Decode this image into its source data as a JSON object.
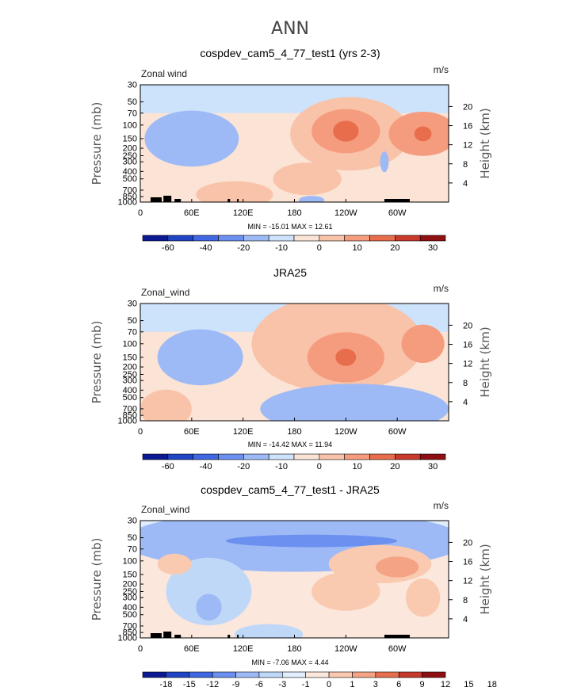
{
  "figure_title": "ANN",
  "colors": {
    "seq_main": [
      "#0b1a93",
      "#1f45c4",
      "#3f68e2",
      "#6c90ef",
      "#9dbaf6",
      "#cde2fb",
      "#fbe3d5",
      "#f9c3a9",
      "#f59c7e",
      "#e86d4c",
      "#c93a2b",
      "#8e1012"
    ],
    "seq_diff": [
      "#0b1a93",
      "#1f45c4",
      "#3f68e2",
      "#6c90ef",
      "#9dbaf6",
      "#c0d8f8",
      "#e1eefd",
      "#fbe7dc",
      "#f9c9b0",
      "#f4a384",
      "#e5704f",
      "#c63a2b",
      "#8e1012"
    ]
  },
  "chart_data": [
    {
      "type": "heatmap",
      "panel_title": "cospdev_cam5_4_77_test1 (yrs 2-3)",
      "left_label": "Zonal wind",
      "units": "m/s",
      "ylabel": "Pressure (mb)",
      "ylabel_right": "Height (km)",
      "x_ticks": [
        "0",
        "60E",
        "120E",
        "180",
        "120W",
        "60W"
      ],
      "y_ticks": [
        "30",
        "50",
        "70",
        "100",
        "150",
        "200",
        "250",
        "300",
        "400",
        "500",
        "700",
        "850",
        "1000"
      ],
      "height_ticks": [
        "4",
        "8",
        "12",
        "16",
        "20"
      ],
      "stats": "MIN = -15.01   MAX =  12.61",
      "colorbar_labels": [
        "-60",
        "-40",
        "-20",
        "-10",
        "0",
        "10",
        "20",
        "30"
      ],
      "blobs": [
        {
          "lon": 60,
          "p": 150,
          "rx": 55,
          "rp": 0.45,
          "v": -1
        },
        {
          "lon": 110,
          "p": 800,
          "rx": 45,
          "rp": 0.2,
          "v": 1
        },
        {
          "lon": 195,
          "p": 500,
          "rx": 40,
          "rp": 0.25,
          "v": 1
        },
        {
          "lon": 245,
          "p": 130,
          "rx": 70,
          "rp": 0.6,
          "v": 1
        },
        {
          "lon": 240,
          "p": 120,
          "rx": 40,
          "rp": 0.35,
          "v": 2
        },
        {
          "lon": 240,
          "p": 120,
          "rx": 15,
          "rp": 0.15,
          "v": 3
        },
        {
          "lon": 330,
          "p": 130,
          "rx": 40,
          "rp": 0.35,
          "v": 2
        },
        {
          "lon": 330,
          "p": 130,
          "rx": 10,
          "rp": 0.1,
          "v": 3
        },
        {
          "lon": 285,
          "p": 300,
          "rx": 5,
          "rp": 0.15,
          "v": -1
        },
        {
          "lon": 200,
          "p": 950,
          "rx": 15,
          "rp": 0.05,
          "v": -1
        }
      ]
    },
    {
      "type": "heatmap",
      "panel_title": "JRA25",
      "left_label": "Zonal_wind",
      "units": "m/s",
      "ylabel": "Pressure (mb)",
      "ylabel_right": "Height (km)",
      "x_ticks": [
        "0",
        "60E",
        "120E",
        "180",
        "120W",
        "60W"
      ],
      "y_ticks": [
        "30",
        "50",
        "70",
        "100",
        "150",
        "200",
        "250",
        "300",
        "400",
        "500",
        "700",
        "850",
        "1000"
      ],
      "height_ticks": [
        "4",
        "8",
        "12",
        "16",
        "20"
      ],
      "stats": "MIN = -14.42   MAX =  11.94",
      "colorbar_labels": [
        "-60",
        "-40",
        "-20",
        "-10",
        "0",
        "10",
        "20",
        "30"
      ],
      "blobs": [
        {
          "lon": 70,
          "p": 150,
          "rx": 50,
          "rp": 0.45,
          "v": -1
        },
        {
          "lon": 30,
          "p": 700,
          "rx": 30,
          "rp": 0.3,
          "v": 1
        },
        {
          "lon": 230,
          "p": 100,
          "rx": 100,
          "rp": 0.8,
          "v": 1
        },
        {
          "lon": 240,
          "p": 150,
          "rx": 45,
          "rp": 0.4,
          "v": 2
        },
        {
          "lon": 240,
          "p": 150,
          "rx": 12,
          "rp": 0.12,
          "v": 3
        },
        {
          "lon": 330,
          "p": 100,
          "rx": 25,
          "rp": 0.3,
          "v": 2
        },
        {
          "lon": 250,
          "p": 700,
          "rx": 110,
          "rp": 0.4,
          "v": -1
        }
      ]
    },
    {
      "type": "heatmap",
      "panel_title": "cospdev_cam5_4_77_test1 - JRA25",
      "left_label": "Zonal_wind",
      "units": "m/s",
      "ylabel": "Pressure (mb)",
      "ylabel_right": "Height (km)",
      "x_ticks": [
        "0",
        "60E",
        "120E",
        "180",
        "120W",
        "60W"
      ],
      "y_ticks": [
        "30",
        "50",
        "70",
        "100",
        "150",
        "200",
        "250",
        "300",
        "400",
        "500",
        "700",
        "850",
        "1000"
      ],
      "height_ticks": [
        "4",
        "8",
        "12",
        "16",
        "20"
      ],
      "stats": "MIN = -7.06   MAX =  4.44",
      "colorbar_labels": [
        "-18",
        "-15",
        "-12",
        "-9",
        "-6",
        "-3",
        "-1",
        "0",
        "1",
        "3",
        "6",
        "9",
        "12",
        "15",
        "18"
      ],
      "blobs": [
        {
          "lon": 180,
          "p": 55,
          "rx": 200,
          "rp": 0.5,
          "v": -2
        },
        {
          "lon": 200,
          "p": 55,
          "rx": 100,
          "rp": 0.08,
          "v": -3
        },
        {
          "lon": 80,
          "p": 250,
          "rx": 50,
          "rp": 0.55,
          "v": -1
        },
        {
          "lon": 80,
          "p": 400,
          "rx": 15,
          "rp": 0.2,
          "v": -2
        },
        {
          "lon": 280,
          "p": 110,
          "rx": 60,
          "rp": 0.3,
          "v": 1
        },
        {
          "lon": 300,
          "p": 120,
          "rx": 25,
          "rp": 0.15,
          "v": 2
        },
        {
          "lon": 40,
          "p": 110,
          "rx": 20,
          "rp": 0.15,
          "v": 1
        },
        {
          "lon": 330,
          "p": 300,
          "rx": 20,
          "rp": 0.3,
          "v": 1
        },
        {
          "lon": 240,
          "p": 250,
          "rx": 40,
          "rp": 0.3,
          "v": 1
        },
        {
          "lon": 150,
          "p": 900,
          "rx": 40,
          "rp": 0.15,
          "v": -1
        }
      ]
    }
  ]
}
